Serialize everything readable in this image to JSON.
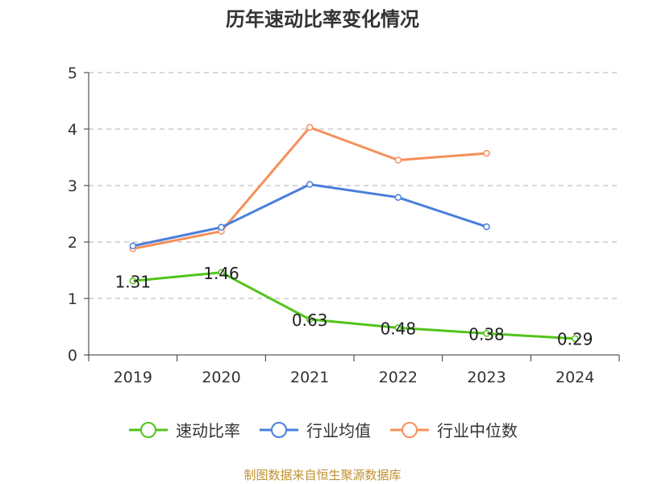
{
  "title": "历年速动比率变化情况",
  "source": "制图数据来自恒生聚源数据库",
  "colors": {
    "grid": "#cccccc",
    "axis": "#333333"
  },
  "chart_data": {
    "type": "line",
    "title": "历年速动比率变化情况",
    "categories": [
      "2019",
      "2020",
      "2021",
      "2022",
      "2023",
      "2024"
    ],
    "ylim": [
      0,
      5
    ],
    "yticks": [
      0,
      1,
      2,
      3,
      4,
      5
    ],
    "grid": true,
    "legend_position": "bottom",
    "series": [
      {
        "name": "速动比率",
        "color": "#52c41a",
        "values": [
          1.31,
          1.46,
          0.63,
          0.48,
          0.38,
          0.29
        ],
        "labels": [
          "1.31",
          "1.46",
          "0.63",
          "0.48",
          "0.38",
          "0.29"
        ]
      },
      {
        "name": "行业均值",
        "color": "#4a7fdc",
        "values": [
          1.93,
          2.26,
          3.02,
          2.79,
          2.27,
          null
        ]
      },
      {
        "name": "行业中位数",
        "color": "#f5905a",
        "values": [
          1.88,
          2.19,
          4.03,
          3.45,
          3.57,
          null
        ]
      }
    ]
  }
}
